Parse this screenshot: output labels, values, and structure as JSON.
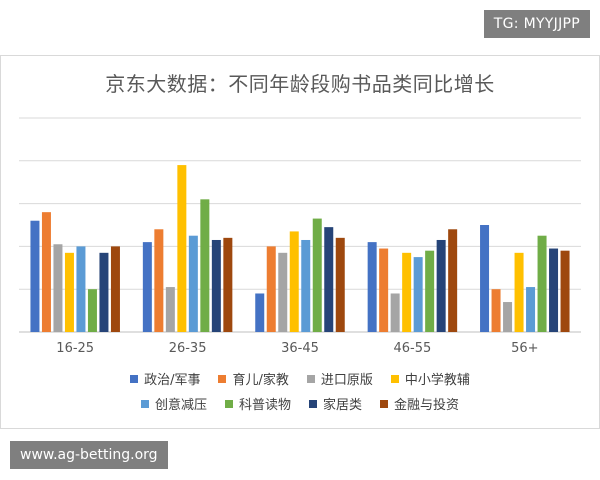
{
  "watermark": {
    "tag": "TG: MYYJJPP",
    "footer": "www.ag-betting.org"
  },
  "chart_data": {
    "type": "bar",
    "title": "京东大数据：不同年龄段购书品类同比增长",
    "xlabel": "",
    "ylabel": "",
    "grid": true,
    "legend_position": "bottom",
    "ylim": [
      0,
      5
    ],
    "categories": [
      "16-25",
      "26-35",
      "36-45",
      "46-55",
      "56+"
    ],
    "series": [
      {
        "name": "政治/军事",
        "color": "#4472c4",
        "values": [
          2.6,
          2.1,
          0.9,
          2.1,
          2.5
        ]
      },
      {
        "name": "育儿/家教",
        "color": "#ed7d31",
        "values": [
          2.8,
          2.4,
          2.0,
          1.95,
          1.0
        ]
      },
      {
        "name": "进口原版",
        "color": "#a5a5a5",
        "values": [
          2.05,
          1.05,
          1.85,
          0.9,
          0.7
        ]
      },
      {
        "name": "中小学教辅",
        "color": "#ffc000",
        "values": [
          1.85,
          3.9,
          2.35,
          1.85,
          1.85
        ]
      },
      {
        "name": "创意减压",
        "color": "#5b9bd5",
        "values": [
          2.0,
          2.25,
          2.15,
          1.75,
          1.05
        ]
      },
      {
        "name": "科普读物",
        "color": "#70ad47",
        "values": [
          1.0,
          3.1,
          2.65,
          1.9,
          2.25
        ]
      },
      {
        "name": "家居类",
        "color": "#264478",
        "values": [
          1.85,
          2.15,
          2.45,
          2.15,
          1.95
        ]
      },
      {
        "name": "金融与投资",
        "color": "#9e480e",
        "values": [
          2.0,
          2.2,
          2.2,
          2.4,
          1.9
        ]
      }
    ]
  }
}
